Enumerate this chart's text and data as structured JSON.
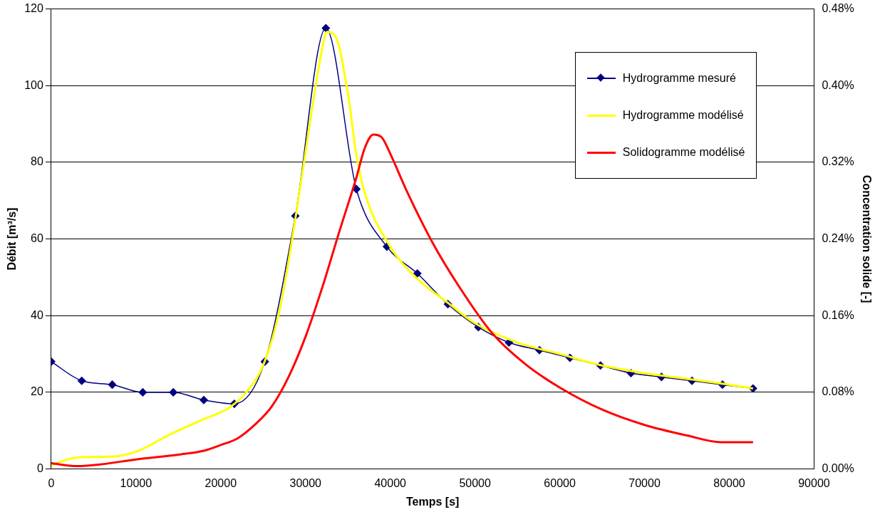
{
  "chart_data": {
    "type": "line",
    "xlabel": "Temps [s]",
    "ylabel": "Débit [m³/s]",
    "y2label": "Concentration solide [-]",
    "xlim": [
      0,
      90000
    ],
    "xticks": [
      0,
      10000,
      20000,
      30000,
      40000,
      50000,
      60000,
      70000,
      80000,
      90000
    ],
    "ylim": [
      0,
      120
    ],
    "yticks": [
      0,
      20,
      40,
      60,
      80,
      100,
      120
    ],
    "y2lim": [
      0,
      0.48
    ],
    "y2ticks": [
      {
        "value": 0,
        "label": "0.00%"
      },
      {
        "value": 0.08,
        "label": "0.08%"
      },
      {
        "value": 0.16,
        "label": "0.16%"
      },
      {
        "value": 0.24,
        "label": "0.24%"
      },
      {
        "value": 0.32,
        "label": "0.32%"
      },
      {
        "value": 0.4,
        "label": "0.40%"
      },
      {
        "value": 0.48,
        "label": "0.48%"
      }
    ],
    "grid": "y",
    "legend": "top right",
    "series": [
      {
        "name": "Hydrogramme mesuré",
        "color": "#000080",
        "marker": "diamond",
        "x": [
          0,
          3600,
          7200,
          10800,
          14400,
          18000,
          21600,
          25200,
          28800,
          32400,
          36000,
          39600,
          43200,
          46800,
          50400,
          54000,
          57600,
          61200,
          64800,
          68400,
          72000,
          75600,
          79200,
          82800
        ],
        "values": [
          28,
          23,
          22,
          20,
          20,
          18,
          17,
          28,
          66,
          115,
          73,
          58,
          51,
          43,
          37,
          33,
          31,
          29,
          27,
          25,
          24,
          23,
          22,
          21
        ]
      },
      {
        "name": "Hydrogramme modélisé",
        "color": "#ffff00",
        "marker": "none",
        "x": [
          0,
          3000,
          7000,
          10000,
          14000,
          18000,
          21000,
          23000,
          25000,
          27000,
          29000,
          30500,
          32000,
          32500,
          33500,
          35000,
          36000,
          37000,
          40000,
          43000,
          47000,
          50000,
          55000,
          60000,
          65000,
          70000,
          75000,
          80000,
          82800
        ],
        "values": [
          1,
          3,
          3.2,
          4.5,
          9,
          13,
          16,
          20,
          27,
          42,
          68,
          90,
          110,
          114,
          113,
          98,
          82,
          72,
          58,
          50,
          43,
          38,
          33,
          30,
          27,
          25,
          23.5,
          22,
          21
        ]
      },
      {
        "name": "Solidogramme modélisé",
        "color": "#ff0000",
        "marker": "none",
        "axis": "y2",
        "x": [
          0,
          3000,
          6000,
          10000,
          15000,
          18000,
          20000,
          22000,
          24000,
          26000,
          28000,
          30000,
          32000,
          34000,
          36000,
          37000,
          38000,
          39000,
          40000,
          42000,
          45000,
          48000,
          52000,
          56000,
          60000,
          65000,
          70000,
          75000,
          79000,
          82800
        ],
        "values": [
          0.006,
          0.003,
          0.005,
          0.01,
          0.015,
          0.019,
          0.025,
          0.032,
          0.046,
          0.065,
          0.096,
          0.138,
          0.19,
          0.248,
          0.304,
          0.335,
          0.349,
          0.346,
          0.329,
          0.289,
          0.236,
          0.192,
          0.142,
          0.109,
          0.085,
          0.062,
          0.046,
          0.035,
          0.028,
          0.028
        ]
      }
    ]
  }
}
